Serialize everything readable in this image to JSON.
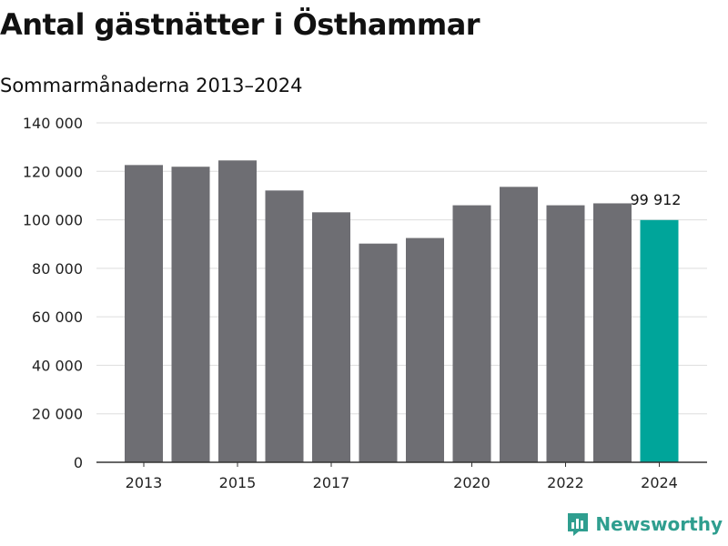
{
  "chart_data": {
    "type": "bar",
    "title": "Antal gästnätter i Östhammar",
    "subtitle": "Sommarmånaderna 2013–2024",
    "categories": [
      "2013",
      "2014",
      "2015",
      "2016",
      "2017",
      "2018",
      "2019",
      "2020",
      "2021",
      "2022",
      "2023",
      "2024"
    ],
    "values": [
      122600,
      121900,
      124500,
      112100,
      103100,
      90200,
      92500,
      106000,
      113600,
      106000,
      106800,
      99912
    ],
    "x_tick_labels": [
      "2013",
      "2015",
      "2017",
      "2020",
      "2022",
      "2024"
    ],
    "y_ticks": [
      0,
      20000,
      40000,
      60000,
      80000,
      100000,
      120000,
      140000
    ],
    "y_tick_labels": [
      "0",
      "20 000",
      "40 000",
      "60 000",
      "80 000",
      "100 000",
      "120 000",
      "140 000"
    ],
    "ylim": [
      0,
      140000
    ],
    "xlabel": "",
    "ylabel": "",
    "grid": true,
    "highlight_index": 11,
    "data_label": "99 912",
    "colors": {
      "bar": "#6e6e73",
      "highlight": "#00a59a",
      "grid": "#dddddd",
      "axis": "#333333"
    }
  },
  "brand": {
    "name": "Newsworthy",
    "color": "#2f9e8f"
  }
}
